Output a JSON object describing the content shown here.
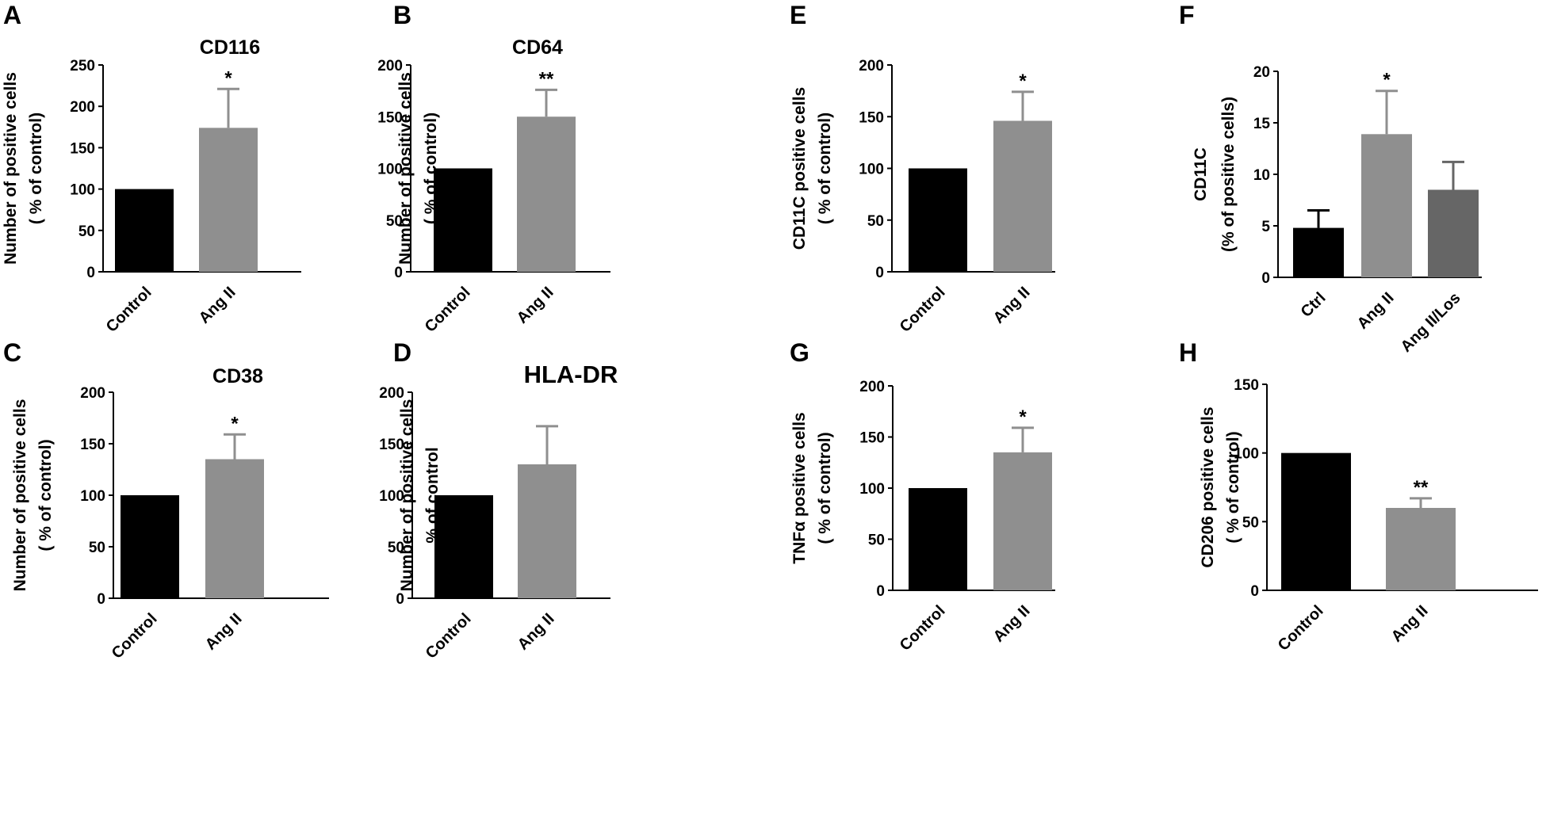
{
  "panels": [
    {
      "letter": "A",
      "chart_data": {
        "type": "bar",
        "title": "CD116",
        "ylabel_lines": [
          "Number of positive cells",
          "( % of control)"
        ],
        "categories": [
          "Control",
          "Ang II"
        ],
        "values": [
          100,
          174
        ],
        "errors": [
          0,
          47
        ],
        "significance": [
          "",
          "*"
        ],
        "colors": [
          "#000000",
          "#8f8f8f"
        ],
        "ylim": [
          0,
          250
        ],
        "yticks": [
          0,
          50,
          100,
          150,
          200,
          250
        ]
      }
    },
    {
      "letter": "B",
      "chart_data": {
        "type": "bar",
        "title": "CD64",
        "ylabel_lines": [
          "Number of positive cells",
          "( % of control)"
        ],
        "categories": [
          "Control",
          "Ang II"
        ],
        "values": [
          100,
          150
        ],
        "errors": [
          0,
          26
        ],
        "significance": [
          "",
          "**"
        ],
        "colors": [
          "#000000",
          "#8f8f8f"
        ],
        "ylim": [
          0,
          200
        ],
        "yticks": [
          0,
          50,
          100,
          150,
          200
        ]
      }
    },
    {
      "letter": "E",
      "chart_data": {
        "type": "bar",
        "title": "",
        "ylabel_lines": [
          "CD11C positive cells",
          "( % of control)"
        ],
        "categories": [
          "Control",
          "Ang II"
        ],
        "values": [
          100,
          146
        ],
        "errors": [
          0,
          28
        ],
        "significance": [
          "",
          "*"
        ],
        "colors": [
          "#000000",
          "#8f8f8f"
        ],
        "ylim": [
          0,
          200
        ],
        "yticks": [
          0,
          50,
          100,
          150,
          200
        ]
      }
    },
    {
      "letter": "F",
      "chart_data": {
        "type": "bar",
        "title": "",
        "ylabel_lines": [
          "CD11C",
          "(% of positive cells)"
        ],
        "categories": [
          "Ctrl",
          "Ang II",
          "Ang II/Los"
        ],
        "values": [
          4.8,
          13.9,
          8.5
        ],
        "errors": [
          1.7,
          4.2,
          2.7
        ],
        "significance": [
          "",
          "*",
          ""
        ],
        "colors": [
          "#000000",
          "#8f8f8f",
          "#666666"
        ],
        "ylim": [
          0,
          20
        ],
        "yticks": [
          0,
          5,
          10,
          15,
          20
        ]
      }
    },
    {
      "letter": "C",
      "chart_data": {
        "type": "bar",
        "title": "CD38",
        "ylabel_lines": [
          "Number of positive cells",
          "( % of control)"
        ],
        "categories": [
          "Control",
          "Ang II"
        ],
        "values": [
          100,
          135
        ],
        "errors": [
          0,
          24
        ],
        "significance": [
          "",
          "*"
        ],
        "colors": [
          "#000000",
          "#8f8f8f"
        ],
        "ylim": [
          0,
          200
        ],
        "yticks": [
          0,
          50,
          100,
          150,
          200
        ]
      }
    },
    {
      "letter": "D",
      "chart_data": {
        "type": "bar",
        "title": "HLA-DR",
        "ylabel_lines": [
          "Number of positive cells",
          "% of control"
        ],
        "categories": [
          "Control",
          "Ang II"
        ],
        "values": [
          100,
          130
        ],
        "errors": [
          0,
          37
        ],
        "significance": [
          "",
          ""
        ],
        "colors": [
          "#000000",
          "#8f8f8f"
        ],
        "ylim": [
          0,
          200
        ],
        "yticks": [
          0,
          50,
          100,
          150,
          200
        ]
      }
    },
    {
      "letter": "G",
      "chart_data": {
        "type": "bar",
        "title": "",
        "ylabel_lines": [
          "TNFα positive cells",
          "( % of control)"
        ],
        "categories": [
          "Control",
          "Ang II"
        ],
        "values": [
          100,
          135
        ],
        "errors": [
          0,
          24
        ],
        "significance": [
          "",
          "*"
        ],
        "colors": [
          "#000000",
          "#8f8f8f"
        ],
        "ylim": [
          0,
          200
        ],
        "yticks": [
          0,
          50,
          100,
          150,
          200
        ]
      }
    },
    {
      "letter": "H",
      "chart_data": {
        "type": "bar",
        "title": "",
        "ylabel_lines": [
          "CD206 positive cells",
          "( % of control)"
        ],
        "categories": [
          "Control",
          "Ang II"
        ],
        "values": [
          100,
          60
        ],
        "errors": [
          0,
          7
        ],
        "significance": [
          "",
          "**"
        ],
        "colors": [
          "#000000",
          "#8f8f8f"
        ],
        "ylim": [
          0,
          150
        ],
        "yticks": [
          0,
          50,
          100,
          150
        ]
      }
    }
  ]
}
